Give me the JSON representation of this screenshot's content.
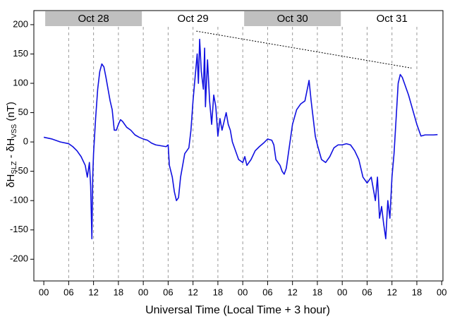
{
  "chart_data": {
    "type": "line",
    "x_label": "Universal Time (Local Time + 3 hour)",
    "y_label_parts": [
      "δH",
      "SLZ",
      " - δH",
      "VSS",
      " (nT)"
    ],
    "day_bars": [
      {
        "label": "Oct 28",
        "shaded": true
      },
      {
        "label": "Oct 29",
        "shaded": false
      },
      {
        "label": "Oct 30",
        "shaded": true
      },
      {
        "label": "Oct 31",
        "shaded": false
      }
    ],
    "xlim": [
      -2.4,
      96.3
    ],
    "ylim": [
      -237,
      224
    ],
    "xticks": [
      {
        "value": 0,
        "label": "00"
      },
      {
        "value": 6,
        "label": "06"
      },
      12,
      18,
      {
        "value": 24,
        "label": "00"
      },
      {
        "value": 30,
        "label": "06"
      },
      {
        "value": 36,
        "label": "12"
      },
      {
        "value": 42,
        "label": "18"
      },
      {
        "value": 48,
        "label": "00"
      },
      {
        "value": 54,
        "label": "06"
      },
      {
        "value": 60,
        "label": "12"
      },
      {
        "value": 66,
        "label": "18"
      },
      {
        "value": 72,
        "label": "00"
      },
      {
        "value": 78,
        "label": "06"
      },
      {
        "value": 84,
        "label": "12"
      },
      {
        "value": 90,
        "label": "18"
      },
      {
        "value": 96,
        "label": "00"
      }
    ],
    "yticks": [
      -200,
      -150,
      -100,
      -50,
      0,
      50,
      100,
      150,
      200
    ],
    "grid": true,
    "trend_line": {
      "x": [
        36.8,
        88.7
      ],
      "y": [
        189,
        126
      ],
      "color": "#000000"
    },
    "x": [
      0,
      2,
      4,
      6,
      7,
      8,
      9,
      10,
      10.5,
      11,
      11.3,
      11.6,
      11.8,
      12,
      12.5,
      13,
      13.5,
      14,
      14.5,
      15,
      15.5,
      16,
      16.5,
      17,
      17.5,
      18,
      18.5,
      19,
      20,
      21,
      22,
      23,
      24,
      25,
      26,
      27,
      29.5,
      30,
      30.3,
      31,
      31.5,
      32,
      32.5,
      33,
      33.5,
      34,
      35,
      35.5,
      36,
      36.5,
      37,
      37.3,
      37.6,
      38,
      38.5,
      38.8,
      39,
      39.5,
      40,
      40.5,
      41,
      41.5,
      42,
      42.5,
      43,
      44,
      44.5,
      45,
      45.5,
      46,
      47,
      48,
      48.5,
      49,
      50,
      51,
      52,
      53,
      54,
      55,
      55.5,
      56,
      57,
      57.5,
      58,
      58.5,
      59,
      60,
      61,
      62,
      63,
      64,
      64.5,
      65,
      65.5,
      66,
      67,
      68,
      69,
      70,
      71,
      72,
      73,
      74,
      75,
      76,
      77,
      78,
      79,
      80,
      80.5,
      81,
      81.5,
      82,
      82.5,
      83,
      83.5,
      84,
      84.5,
      85,
      85.5,
      86,
      86.5,
      87,
      88,
      89,
      90,
      91,
      92,
      93,
      94,
      95
    ],
    "series": [
      {
        "color": "#1010e0",
        "values": [
          8,
          5,
          0,
          -3,
          -8,
          -15,
          -25,
          -40,
          -60,
          -35,
          -75,
          -165,
          -60,
          -20,
          40,
          90,
          120,
          133,
          128,
          110,
          90,
          70,
          55,
          20,
          20,
          30,
          38,
          35,
          25,
          20,
          12,
          8,
          5,
          3,
          -2,
          -5,
          -8,
          -5,
          -40,
          -60,
          -85,
          -100,
          -95,
          -60,
          -40,
          -20,
          -10,
          20,
          70,
          110,
          150,
          100,
          175,
          120,
          90,
          160,
          60,
          140,
          70,
          30,
          80,
          60,
          10,
          40,
          20,
          50,
          30,
          20,
          0,
          -10,
          -30,
          -35,
          -25,
          -40,
          -30,
          -15,
          -8,
          -2,
          5,
          3,
          -5,
          -30,
          -40,
          -50,
          -55,
          -45,
          -20,
          30,
          55,
          65,
          70,
          105,
          70,
          40,
          10,
          -5,
          -30,
          -35,
          -25,
          -10,
          -5,
          -5,
          -3,
          -5,
          -15,
          -30,
          -60,
          -70,
          -60,
          -100,
          -60,
          -130,
          -110,
          -140,
          -165,
          -100,
          -130,
          -60,
          -20,
          40,
          100,
          115,
          110,
          100,
          80,
          55,
          30,
          10,
          12,
          12,
          12,
          12.5
        ]
      }
    ]
  }
}
